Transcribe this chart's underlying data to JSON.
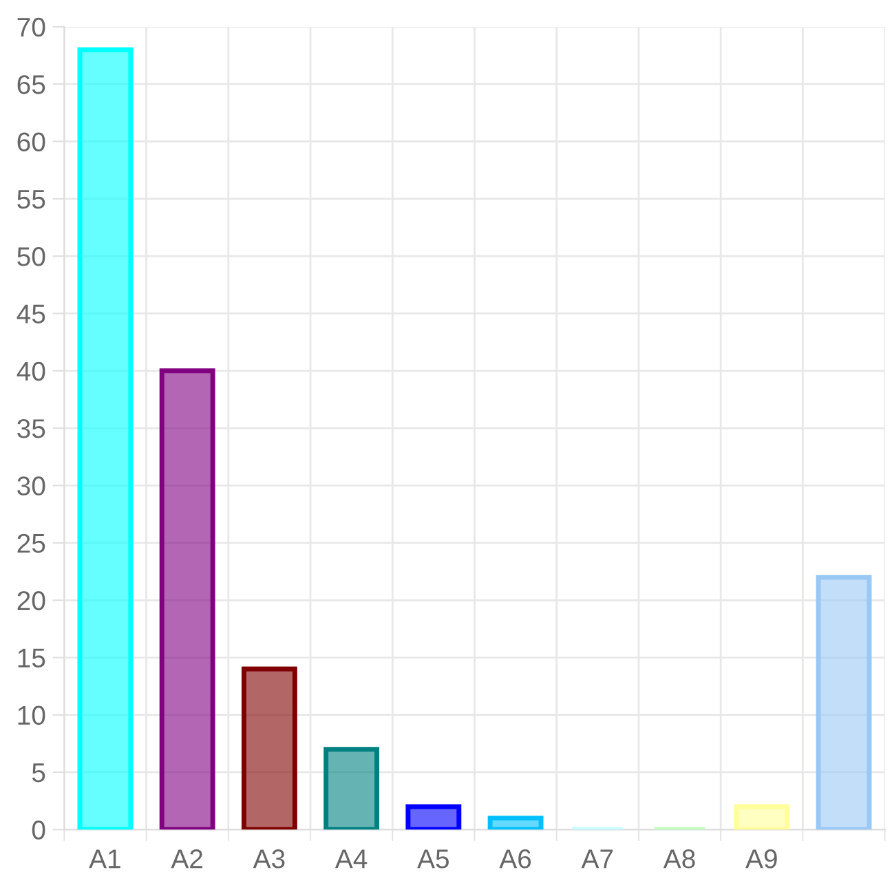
{
  "chart_data": {
    "type": "bar",
    "categories": [
      "A1",
      "A2",
      "A3",
      "A4",
      "A5",
      "A6",
      "A7",
      "A8",
      "A9",
      null
    ],
    "values": [
      68,
      40,
      14,
      7,
      2,
      1,
      0,
      0,
      2,
      22
    ],
    "colors": [
      "#00ffff",
      "#800080",
      "#800000",
      "#008080",
      "#0000ff",
      "#00bfff",
      "#c8ffff",
      "#c0ffc0",
      "#ffff99",
      "#99c8f5"
    ],
    "ylim": [
      0,
      70
    ],
    "yticks": [
      0,
      5,
      10,
      15,
      20,
      25,
      30,
      35,
      40,
      45,
      50,
      55,
      60,
      65,
      70
    ],
    "grid": true
  }
}
